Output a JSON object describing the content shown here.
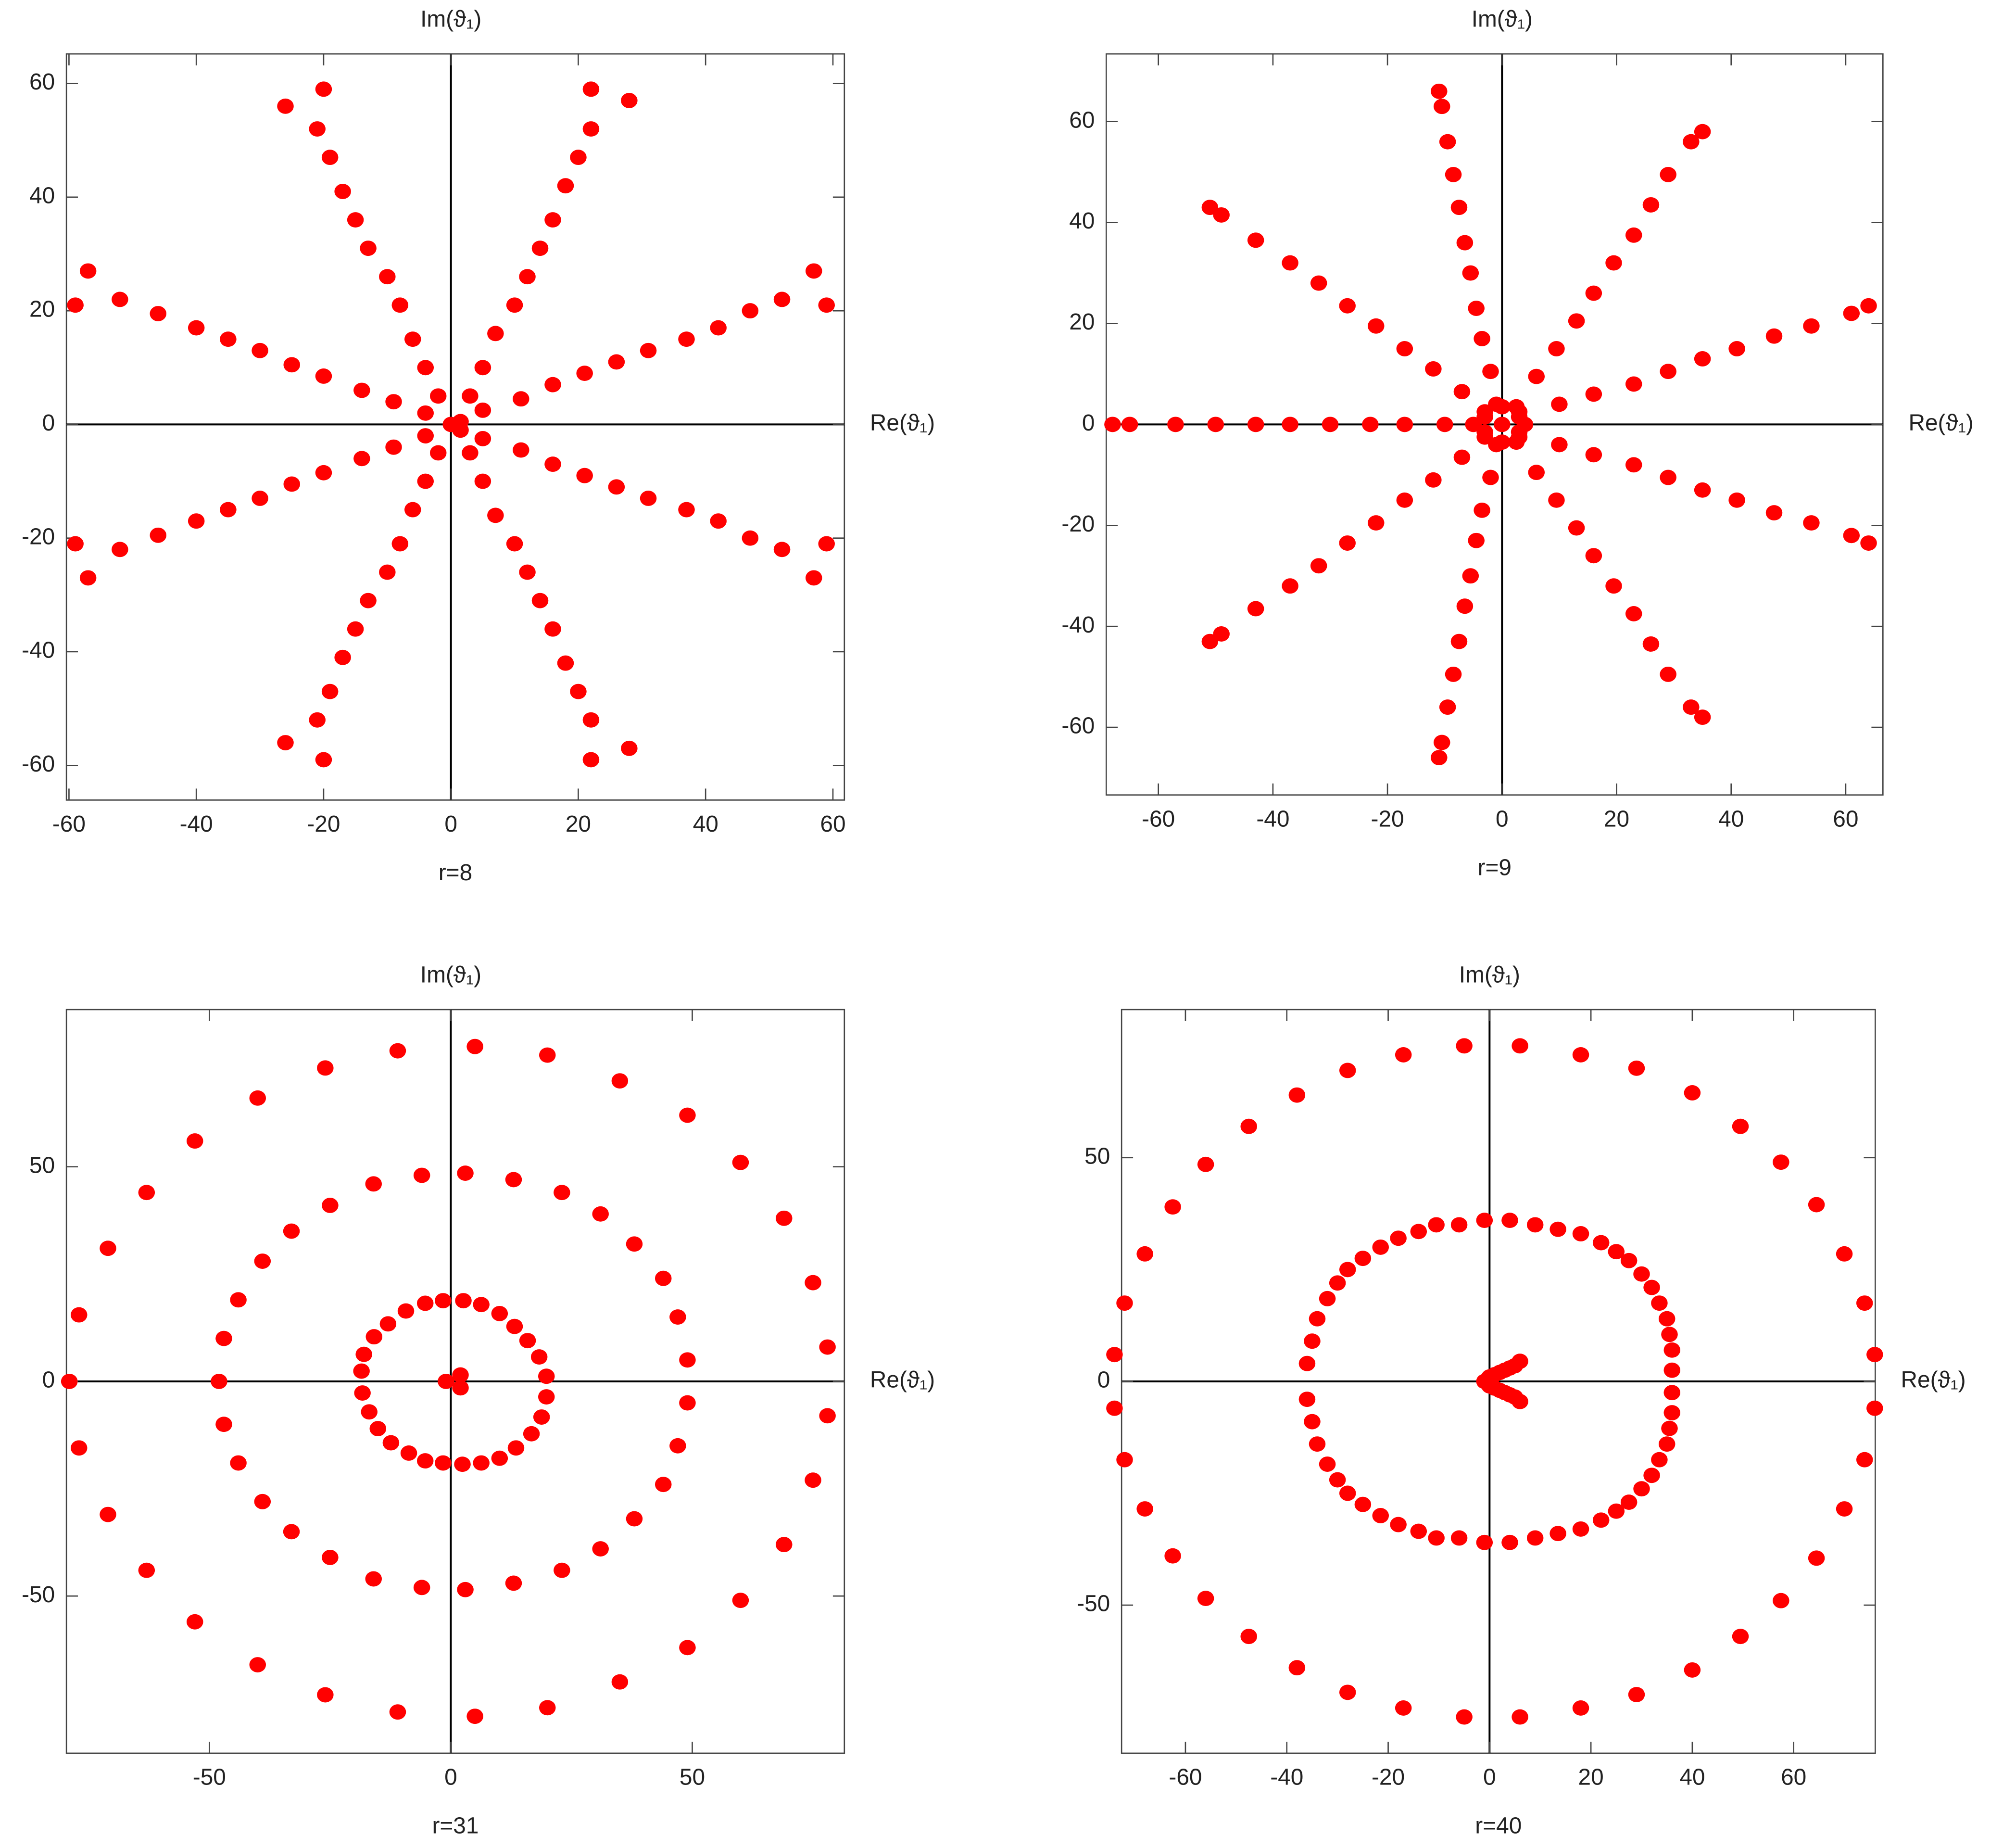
{
  "chart_data": [
    {
      "type": "scatter",
      "title": "r=8",
      "x_label": "Re(ϑ₁)",
      "y_label": "Im(ϑ₁)",
      "color": "#ff0000",
      "xlim": [
        -60.4,
        61.8
      ],
      "ylim": [
        -66.1,
        65.2
      ],
      "xticks": [
        -60,
        -40,
        -20,
        0,
        20,
        40,
        60
      ],
      "yticks": [
        -60,
        -40,
        -20,
        0,
        20,
        40,
        60
      ],
      "x": [
        22,
        28,
        22,
        20,
        18,
        16,
        14,
        12,
        10,
        7,
        5,
        3,
        59,
        57,
        52,
        47,
        42,
        37,
        31,
        26,
        21,
        16,
        11,
        5,
        -20,
        -26,
        -21,
        -19,
        -17,
        -15,
        -13,
        -10,
        -8,
        -6,
        -4,
        -2,
        -59,
        -57,
        -52,
        -46,
        -40,
        -35,
        -30,
        -25,
        -20,
        -14,
        -9,
        -4,
        22,
        28,
        22,
        20,
        18,
        16,
        14,
        12,
        10,
        7,
        5,
        3,
        59,
        57,
        52,
        47,
        42,
        37,
        31,
        26,
        21,
        16,
        11,
        5,
        -20,
        -26,
        -21,
        -19,
        -17,
        -15,
        -13,
        -10,
        -8,
        -6,
        -4,
        -2,
        -59,
        -57,
        -52,
        -46,
        -40,
        -35,
        -30,
        -25,
        -20,
        -14,
        -9,
        -4,
        0,
        1.5,
        1.5
      ],
      "values": [
        59,
        57,
        52,
        47,
        42,
        36,
        31,
        26,
        21,
        16,
        10,
        5,
        21,
        27,
        22,
        20,
        17,
        15,
        13,
        11,
        9,
        7,
        4.5,
        2.5,
        59,
        56,
        52,
        47,
        41,
        36,
        31,
        26,
        21,
        15,
        10,
        5,
        21,
        27,
        22,
        19.5,
        17,
        15,
        13,
        10.5,
        8.5,
        6,
        4,
        2,
        -59,
        -57,
        -52,
        -47,
        -42,
        -36,
        -31,
        -26,
        -21,
        -16,
        -10,
        -5,
        -21,
        -27,
        -22,
        -20,
        -17,
        -15,
        -13,
        -11,
        -9,
        -7,
        -4.5,
        -2.5,
        -59,
        -56,
        -52,
        -47,
        -41,
        -36,
        -31,
        -26,
        -21,
        -15,
        -10,
        -5,
        -21,
        -27,
        -22,
        -19.5,
        -17,
        -15,
        -13,
        -10.5,
        -8.5,
        -6,
        -4,
        -2,
        0,
        0.5,
        -1
      ]
    },
    {
      "type": "scatter",
      "title": "r=9",
      "x_label": "Re(ϑ₁)",
      "y_label": "Im(ϑ₁)",
      "color": "#ff0000",
      "xlim": [
        -69.1,
        66.5
      ],
      "ylim": [
        -73.4,
        73.4
      ],
      "xticks": [
        -60,
        -40,
        -20,
        0,
        20,
        40,
        60
      ],
      "yticks": [
        -60,
        -40,
        -20,
        0,
        20,
        40,
        60
      ],
      "x": [
        -68,
        -65,
        -57,
        -50,
        -43,
        -37,
        -30,
        -23,
        -17,
        -10,
        -5,
        -11,
        -10.5,
        -9.5,
        -8.5,
        -7.5,
        -6.5,
        -5.5,
        -4.5,
        -3.5,
        -2,
        -1,
        -51,
        -49,
        -43,
        -37,
        -32,
        -27,
        -22,
        -17,
        -12,
        -7,
        -3,
        35,
        33,
        29,
        26,
        23,
        19.5,
        16,
        13,
        9.5,
        6,
        2.5,
        64,
        61,
        54,
        47.5,
        41,
        35,
        29,
        23,
        16,
        10,
        3,
        -11,
        -10.5,
        -9.5,
        -8.5,
        -7.5,
        -6.5,
        -5.5,
        -4.5,
        -3.5,
        -2,
        -1,
        -51,
        -49,
        -43,
        -37,
        -32,
        -27,
        -22,
        -17,
        -12,
        -7,
        -3,
        35,
        33,
        29,
        26,
        23,
        19.5,
        16,
        13,
        9.5,
        6,
        2.5,
        64,
        61,
        54,
        47.5,
        41,
        35,
        29,
        23,
        16,
        10,
        3,
        -3,
        -3,
        0,
        0,
        3,
        3,
        4,
        0
      ],
      "values": [
        0,
        0,
        0,
        0,
        0,
        0,
        0,
        0,
        0,
        0,
        0,
        66,
        63,
        56,
        49.5,
        43,
        36,
        30,
        23,
        17,
        10.5,
        4,
        43,
        41.5,
        36.5,
        32,
        28,
        23.5,
        19.5,
        15,
        11,
        6.5,
        2.5,
        58,
        56,
        49.5,
        43.5,
        37.5,
        32,
        26,
        20.5,
        15,
        9.5,
        3.5,
        23.5,
        22,
        19.5,
        17.5,
        15,
        13,
        10.5,
        8,
        6,
        4,
        1.5,
        -66,
        -63,
        -56,
        -49.5,
        -43,
        -36,
        -30,
        -23,
        -17,
        -10.5,
        -4,
        -43,
        -41.5,
        -36.5,
        -32,
        -28,
        -23.5,
        -19.5,
        -15,
        -11,
        -6.5,
        -2.5,
        -58,
        -56,
        -49.5,
        -43.5,
        -37.5,
        -32,
        -26,
        -20.5,
        -15,
        -9.5,
        -3.5,
        -23.5,
        -22,
        -19.5,
        -17.5,
        -15,
        -13,
        -10.5,
        -8,
        -6,
        -4,
        -1.5,
        1.5,
        -1.5,
        3.5,
        -3.5,
        2.5,
        -2.5,
        0,
        0
      ]
    },
    {
      "type": "scatter",
      "title": "r=31",
      "x_label": "Re(ϑ₁)",
      "y_label": "Im(ϑ₁)",
      "color": "#ff0000",
      "xlim": [
        -79.6,
        81.5
      ],
      "ylim": [
        -86.6,
        86.6
      ],
      "xticks": [
        -50,
        0,
        50
      ],
      "yticks": [
        -50,
        0,
        50
      ],
      "x": [
        5,
        20,
        35,
        49,
        60,
        69,
        75,
        78,
        78,
        75,
        69,
        60,
        49,
        35,
        20,
        5,
        -11,
        -26,
        -40,
        -53,
        -63,
        -71,
        -77,
        -79,
        -77,
        -71,
        -63,
        -53,
        -40,
        -26,
        -11,
        3,
        13,
        23,
        31,
        38,
        44,
        47,
        49,
        49,
        47,
        44,
        38,
        31,
        23,
        13,
        3,
        -6,
        -16,
        -25,
        -33,
        -39,
        -44,
        -47,
        -48,
        -47,
        -44,
        -39,
        -33,
        -25,
        -16,
        -6,
        -1.6,
        2.6,
        6.3,
        10.1,
        13.2,
        15.9,
        18.3,
        19.8,
        19.8,
        18.8,
        16.7,
        13.5,
        10.1,
        6.3,
        2.4,
        -1.6,
        -5.3,
        -9.3,
        -13,
        -15.9,
        -18,
        -18.5,
        -18.3,
        -16.9,
        -15.1,
        -12.4,
        -8.7,
        -5.3,
        -1,
        2,
        2
      ],
      "values": [
        78,
        76,
        70,
        62,
        51,
        38,
        23,
        8,
        -8,
        -23,
        -38,
        -51,
        -62,
        -70,
        -76,
        -78,
        77,
        73,
        66,
        56,
        44,
        31,
        15.5,
        0,
        -15.5,
        -31,
        -44,
        -56,
        -66,
        -73,
        -77,
        48.5,
        47,
        44,
        39,
        32,
        24,
        15,
        5,
        -5,
        -15,
        -24,
        -32,
        -39,
        -44,
        -47,
        -48.5,
        48,
        46,
        41,
        35,
        28,
        19,
        10,
        0,
        -10,
        -19,
        -28,
        -35,
        -41,
        -46,
        -48,
        18.8,
        18.8,
        17.9,
        15.8,
        12.8,
        9.5,
        5.7,
        1.2,
        -3.6,
        -8.3,
        -12.2,
        -15.5,
        -17.9,
        -19,
        -19.3,
        -19,
        18.2,
        16.4,
        13.4,
        10.4,
        6.3,
        2.4,
        -2.7,
        -7.1,
        -11,
        -14.3,
        -16.7,
        -18.5,
        0,
        1.5,
        -1.5
      ]
    },
    {
      "type": "scatter",
      "title": "r=40",
      "x_label": "Re(ϑ₁)",
      "y_label": "Im(ϑ₁)",
      "color": "#ff0000",
      "xlim": [
        -72.6,
        76.1
      ],
      "ylim": [
        -83.1,
        83.1
      ],
      "xticks": [
        -60,
        -40,
        -20,
        0,
        20,
        40,
        60
      ],
      "yticks": [
        -50,
        0,
        50
      ],
      "x": [
        6,
        18,
        29,
        40,
        49.5,
        57.5,
        64.5,
        70,
        74,
        76,
        6,
        18,
        29,
        40,
        49.5,
        57.5,
        64.5,
        70,
        74,
        76,
        -5,
        -17,
        -28,
        -38,
        -47.5,
        -56,
        -62.5,
        -68,
        -72,
        -74,
        -5,
        -17,
        -28,
        -38,
        -47.5,
        -56,
        -62.5,
        -68,
        -72,
        -74,
        4,
        9,
        13.5,
        18,
        22,
        25,
        27.5,
        30,
        32,
        33.5,
        35,
        35.5,
        36,
        36,
        4,
        9,
        13.5,
        18,
        22,
        25,
        27.5,
        30,
        32,
        33.5,
        35,
        35.5,
        36,
        36,
        -1,
        -6,
        -10.5,
        -14,
        -18,
        -21.5,
        -25,
        -28,
        -30,
        -32,
        -34,
        -35,
        -36,
        -1,
        -6,
        -10.5,
        -14,
        -18,
        -21.5,
        -25,
        -28,
        -30,
        -32,
        -34,
        -35,
        -36,
        -1,
        0,
        1,
        2,
        3,
        4,
        5,
        6,
        0,
        1,
        2,
        3,
        4,
        5,
        6
      ],
      "values": [
        75,
        73,
        70,
        64.5,
        57,
        49,
        39.5,
        28.5,
        17.5,
        6,
        -75,
        -73,
        -70,
        -64.5,
        -57,
        -49,
        -39.5,
        -28.5,
        -17.5,
        -6,
        75,
        73,
        69.5,
        64,
        57,
        48.5,
        39,
        28.5,
        17.5,
        6,
        -75,
        -73,
        -69.5,
        -64,
        -57,
        -48.5,
        -39,
        -28.5,
        -17.5,
        -6,
        36,
        35,
        34,
        33,
        31,
        29,
        27,
        24,
        21,
        17.5,
        14,
        10.5,
        7,
        2.5,
        -36,
        -35,
        -34,
        -33,
        -31,
        -29,
        -27,
        -24,
        -21,
        -17.5,
        -14,
        -10.5,
        -7,
        -2.5,
        36,
        35,
        35,
        33.5,
        32,
        30,
        27.5,
        25,
        22,
        18.5,
        14,
        9,
        4,
        -36,
        -35,
        -35,
        -33.5,
        -32,
        -30,
        -27.5,
        -25,
        -22,
        -18.5,
        -14,
        -9,
        -4,
        0,
        1,
        1.5,
        2,
        2.5,
        3,
        3.5,
        4.5,
        -1,
        -1.5,
        -2,
        -2.5,
        -3,
        -3.5,
        -4.5
      ]
    }
  ]
}
